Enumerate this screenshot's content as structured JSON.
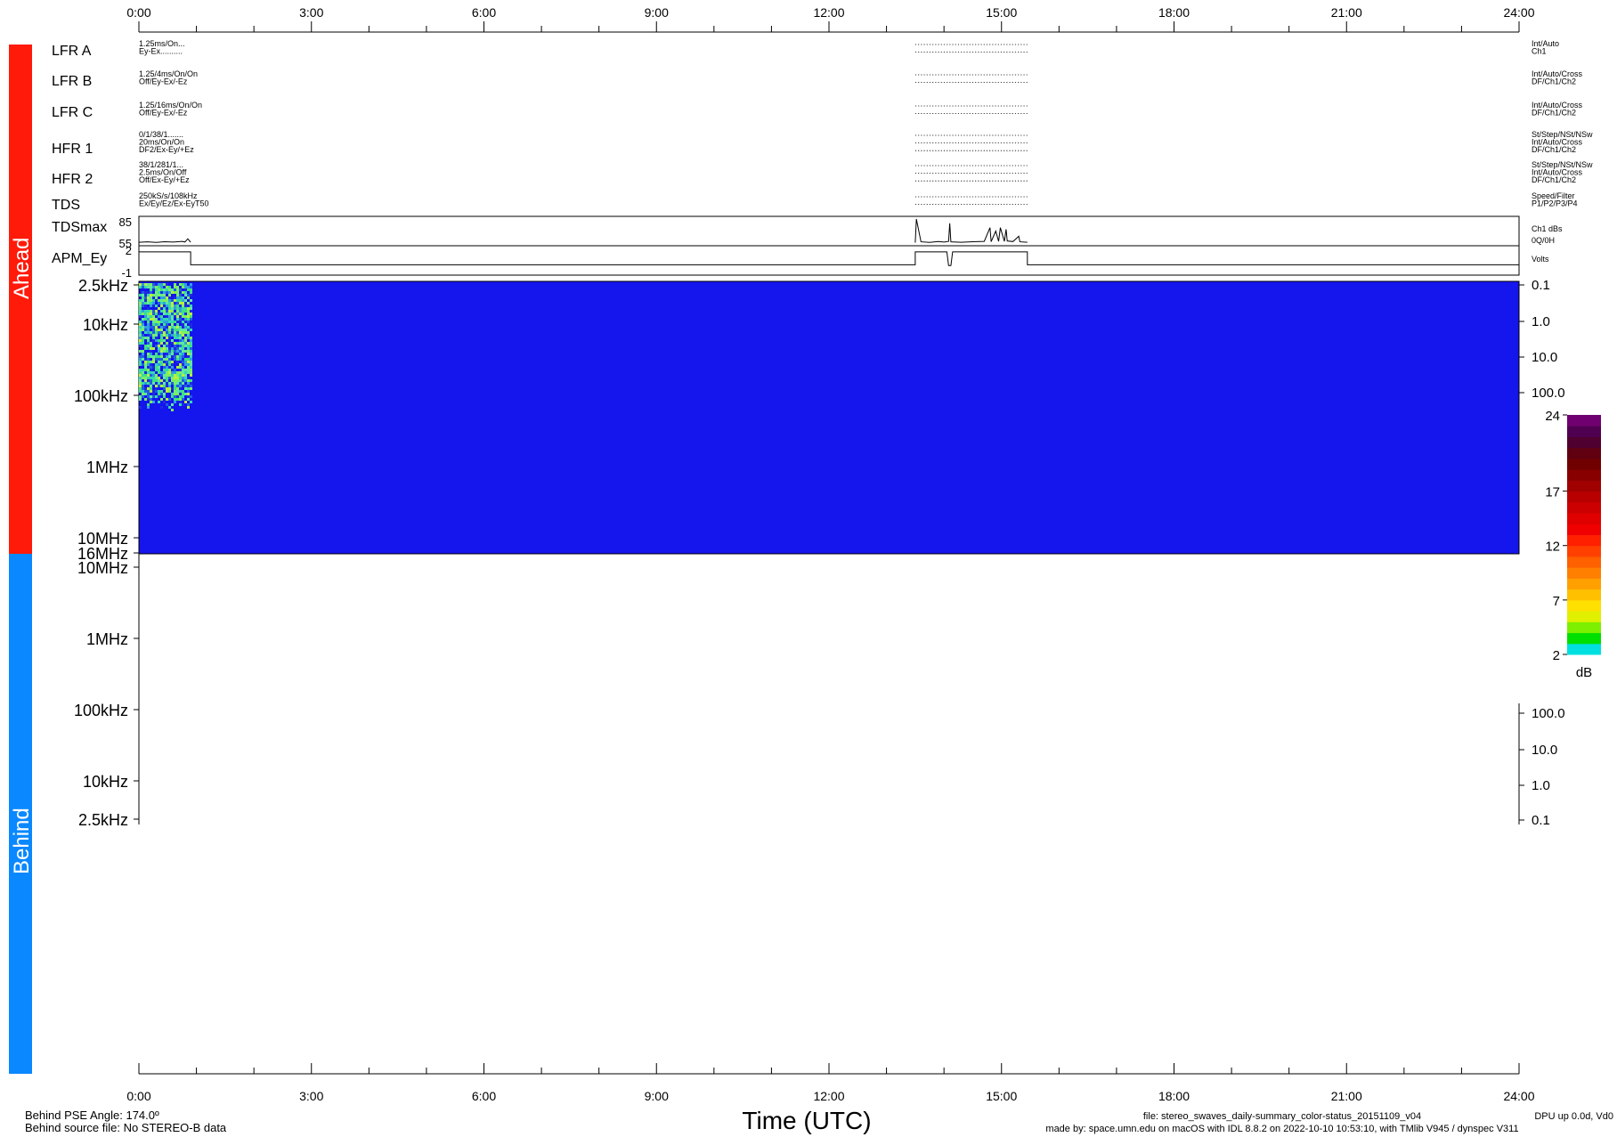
{
  "chart_data": {
    "type": "heatmap",
    "time_ticks": [
      "0:00",
      "3:00",
      "6:00",
      "9:00",
      "12:00",
      "15:00",
      "18:00",
      "21:00",
      "24:00"
    ],
    "xlabel": "Time (UTC)",
    "xlim_hours": [
      0,
      24
    ],
    "sides": {
      "ahead": "Ahead",
      "behind": "Behind"
    },
    "status_rows": [
      {
        "name": "LFR A",
        "left": [
          "1.25ms/On...",
          "Ey-Ex.........."
        ],
        "right": [
          "Int/Auto",
          "Ch1"
        ]
      },
      {
        "name": "LFR B",
        "left": [
          "1.25/4ms/On/On",
          "Off/Ey-Ex/-Ez"
        ],
        "right": [
          "Int/Auto/Cross",
          "DF/Ch1/Ch2"
        ]
      },
      {
        "name": "LFR C",
        "left": [
          "1.25/16ms/On/On",
          "Off/Ey-Ex/-Ez"
        ],
        "right": [
          "Int/Auto/Cross",
          "DF/Ch1/Ch2"
        ]
      },
      {
        "name": "HFR 1",
        "left": [
          "0/1/38/1.......",
          "20ms/On/On",
          "DF2/Ex-Ey/+Ez"
        ],
        "right": [
          "St/Step/NSt/NSw",
          "Int/Auto/Cross",
          "DF/Ch1/Ch2"
        ]
      },
      {
        "name": "HFR 2",
        "left": [
          "38/1/281/1...",
          "2.5ms/On/Off",
          "Off/Ex-Ey/+Ez"
        ],
        "right": [
          "St/Step/NSt/NSw",
          "Int/Auto/Cross",
          "DF/Ch1/Ch2"
        ]
      },
      {
        "name": "TDS",
        "left": [
          "250kS/s/108kHz",
          "Ex/Ey/Ez/Ex-EyT50"
        ],
        "right": [
          "Speed/Filter",
          "P1/P2/P3/P4"
        ]
      }
    ],
    "status_dotted_span_hours": [
      13.5,
      15.45
    ],
    "tdsmax": {
      "label": "TDSmax",
      "yticks": [
        "85",
        "55"
      ],
      "ylim": [
        55,
        85
      ],
      "right": [
        "Ch1 dBs",
        "0Q/0H"
      ],
      "segments": [
        {
          "x": [
            0,
            0.15,
            0.3,
            0.45,
            0.6,
            0.75,
            0.8,
            0.85,
            0.9
          ],
          "y": [
            57,
            57.5,
            56.8,
            57.6,
            57.2,
            58,
            57.3,
            61,
            57
          ]
        },
        {
          "x": [
            13.5,
            13.52,
            13.6,
            13.75,
            13.9,
            14.0,
            14.08,
            14.1,
            14.12,
            14.3,
            14.5,
            14.7,
            14.8,
            14.82,
            14.9,
            14.95,
            14.98,
            15.05,
            15.08,
            15.1,
            15.2,
            15.3,
            15.32,
            15.45
          ],
          "y": [
            56.5,
            84,
            57.5,
            56.8,
            57.8,
            57.2,
            58,
            79,
            57.4,
            57,
            57.6,
            58,
            74,
            57.6,
            70,
            58,
            74,
            58,
            72,
            58.5,
            57.8,
            64,
            57.5,
            57
          ]
        }
      ]
    },
    "apm": {
      "label": "APM_Ey",
      "yticks": [
        "2",
        "-1"
      ],
      "ylim": [
        -1,
        2
      ],
      "right": [
        "Volts"
      ],
      "x": [
        0,
        0.9,
        0.9,
        13.5,
        13.5,
        14.05,
        14.08,
        14.12,
        14.15,
        15.45,
        15.45,
        24
      ],
      "y": [
        1.5,
        1.5,
        0,
        0,
        1.5,
        1.5,
        -0.1,
        -0.1,
        1.5,
        1.5,
        0,
        0
      ]
    },
    "ahead_spectrogram": {
      "yticks": [
        "2.5kHz",
        "10kHz",
        "100kHz",
        "1MHz",
        "10MHz",
        "16MHz"
      ],
      "right_ticks": [
        "0.1",
        "1.0",
        "10.0",
        "100.0"
      ],
      "background_color": "#1515EE",
      "activity_span_hours": [
        0,
        0.9
      ],
      "activity_freq_range": [
        "2.5kHz",
        "150kHz"
      ]
    },
    "behind_spectrogram": {
      "yticks": [
        "10MHz",
        "1MHz",
        "100kHz",
        "10kHz",
        "2.5kHz"
      ],
      "right_ticks": [
        "100.0",
        "10.0",
        "1.0",
        "0.1"
      ],
      "data": "none"
    },
    "colorbar": {
      "ticks": [
        "24",
        "17",
        "12",
        "7",
        "2"
      ],
      "range": [
        2,
        24
      ],
      "unit": "dB",
      "colors": [
        "#00E0E0",
        "#00E000",
        "#7CF000",
        "#E0F000",
        "#FFE000",
        "#FFC000",
        "#FFA000",
        "#FF8000",
        "#FF6000",
        "#FF4000",
        "#FF2000",
        "#F00000",
        "#E00000",
        "#CC0000",
        "#B80000",
        "#A00000",
        "#880000",
        "#700000",
        "#600010",
        "#500030",
        "#500050",
        "#700070"
      ]
    },
    "footer": {
      "left": [
        "Behind PSE Angle:  174.0º",
        "Behind source file: No STEREO-B data"
      ],
      "file": "file: stereo_swaves_daily-summary_color-status_20151109_v04",
      "made_by": "made by: space.umn.edu on macOS with IDL 8.8.2 on 2022-10-10 10:53:10, with TMlib V945 / dynspec V311",
      "dpu": "DPU up 0.0d, Vd0"
    },
    "colors": {
      "ahead": "#FF1A0A",
      "behind": "#0A88FF"
    }
  }
}
